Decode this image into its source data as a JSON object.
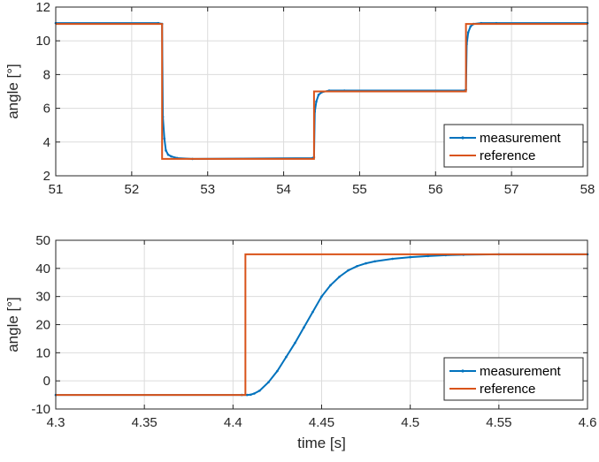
{
  "chart_data": [
    {
      "type": "line",
      "ylabel": "angle [°]",
      "xlabel": "",
      "xlim": [
        51,
        58
      ],
      "ylim": [
        2,
        12
      ],
      "xticks": [
        51,
        52,
        53,
        54,
        55,
        56,
        57,
        58
      ],
      "yticks": [
        2,
        4,
        6,
        8,
        10,
        12
      ],
      "grid": true,
      "legend_position": "bottom-right",
      "series": [
        {
          "name": "measurement",
          "color": "#0072BD",
          "style": "dotted-line",
          "x": [
            51.0,
            52.35,
            52.4,
            52.41,
            52.43,
            52.45,
            52.48,
            52.52,
            52.6,
            52.8,
            54.38,
            54.4,
            54.41,
            54.43,
            54.46,
            54.5,
            54.6,
            54.8,
            56.38,
            56.4,
            56.41,
            56.43,
            56.46,
            56.5,
            56.6,
            56.8,
            58.0
          ],
          "values": [
            11.05,
            11.05,
            11.0,
            5.5,
            4.2,
            3.5,
            3.25,
            3.15,
            3.05,
            3.0,
            3.05,
            3.1,
            5.8,
            6.4,
            6.8,
            6.95,
            7.05,
            7.05,
            7.05,
            7.1,
            9.8,
            10.5,
            10.85,
            11.0,
            11.05,
            11.05,
            11.05
          ]
        },
        {
          "name": "reference",
          "color": "#D95319",
          "style": "solid",
          "x": [
            51.0,
            52.4,
            52.4,
            54.4,
            54.4,
            56.4,
            56.4,
            58.0
          ],
          "values": [
            11,
            11,
            3,
            3,
            7,
            7,
            11,
            11
          ]
        }
      ]
    },
    {
      "type": "line",
      "ylabel": "angle [°]",
      "xlabel": "time [s]",
      "xlim": [
        4.3,
        4.6
      ],
      "ylim": [
        -10,
        50
      ],
      "xticks": [
        "4.3",
        "4.35",
        "4.4",
        "4.45",
        "4.5",
        "4.55",
        "4.6"
      ],
      "yticks": [
        -10,
        0,
        10,
        20,
        30,
        40,
        50
      ],
      "grid": true,
      "legend_position": "bottom-right",
      "series": [
        {
          "name": "measurement",
          "color": "#0072BD",
          "style": "dotted-line",
          "x": [
            4.3,
            4.405,
            4.408,
            4.41,
            4.412,
            4.415,
            4.42,
            4.425,
            4.43,
            4.435,
            4.44,
            4.445,
            4.45,
            4.455,
            4.46,
            4.465,
            4.47,
            4.475,
            4.48,
            4.49,
            4.5,
            4.51,
            4.52,
            4.53,
            4.55,
            4.6
          ],
          "values": [
            -5,
            -5,
            -5,
            -4.9,
            -4.5,
            -3.5,
            -0.5,
            3.5,
            8.5,
            13.5,
            19,
            24.5,
            30,
            34,
            37,
            39.3,
            40.8,
            41.8,
            42.5,
            43.4,
            44.0,
            44.4,
            44.7,
            44.85,
            45,
            45
          ]
        },
        {
          "name": "reference",
          "color": "#D95319",
          "style": "solid",
          "x": [
            4.3,
            4.407,
            4.407,
            4.6
          ],
          "values": [
            -5,
            -5,
            45,
            45
          ]
        }
      ]
    }
  ]
}
